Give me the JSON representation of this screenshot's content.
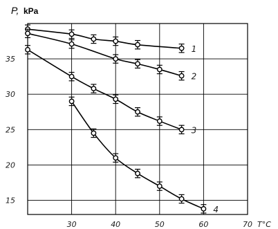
{
  "chart_data": {
    "type": "line",
    "ylabel_var": "P,",
    "ylabel_unit": "kPa",
    "xlabel": "T°C",
    "xlim": [
      20,
      70
    ],
    "ylim": [
      13,
      40
    ],
    "x_ticks": [
      "30",
      "40",
      "50",
      "60",
      "70"
    ],
    "x_tick_values": [
      30,
      40,
      50,
      60,
      70
    ],
    "y_ticks": [
      "15",
      "20",
      "25",
      "30",
      "35"
    ],
    "y_tick_values": [
      15,
      20,
      25,
      30,
      35
    ],
    "grid": true,
    "series": [
      {
        "label": "1",
        "x": [
          20,
          30,
          35,
          40,
          45,
          55
        ],
        "y": [
          39.2,
          38.5,
          37.8,
          37.5,
          37.0,
          36.5
        ],
        "err": 0.6
      },
      {
        "label": "2",
        "x": [
          20,
          30,
          40,
          45,
          50,
          55
        ],
        "y": [
          38.6,
          37.1,
          35.0,
          34.3,
          33.5,
          32.6
        ],
        "err": 0.6
      },
      {
        "label": "3",
        "x": [
          20,
          30,
          35,
          40,
          45,
          50,
          55
        ],
        "y": [
          36.3,
          32.5,
          30.8,
          29.3,
          27.5,
          26.2,
          25.0
        ],
        "err": 0.6
      },
      {
        "label": "4",
        "x": [
          30,
          35,
          40,
          45,
          50,
          55,
          60
        ],
        "y": [
          29.0,
          24.5,
          21.0,
          18.8,
          17.0,
          15.2,
          13.8
        ],
        "err": 0.6
      }
    ]
  }
}
